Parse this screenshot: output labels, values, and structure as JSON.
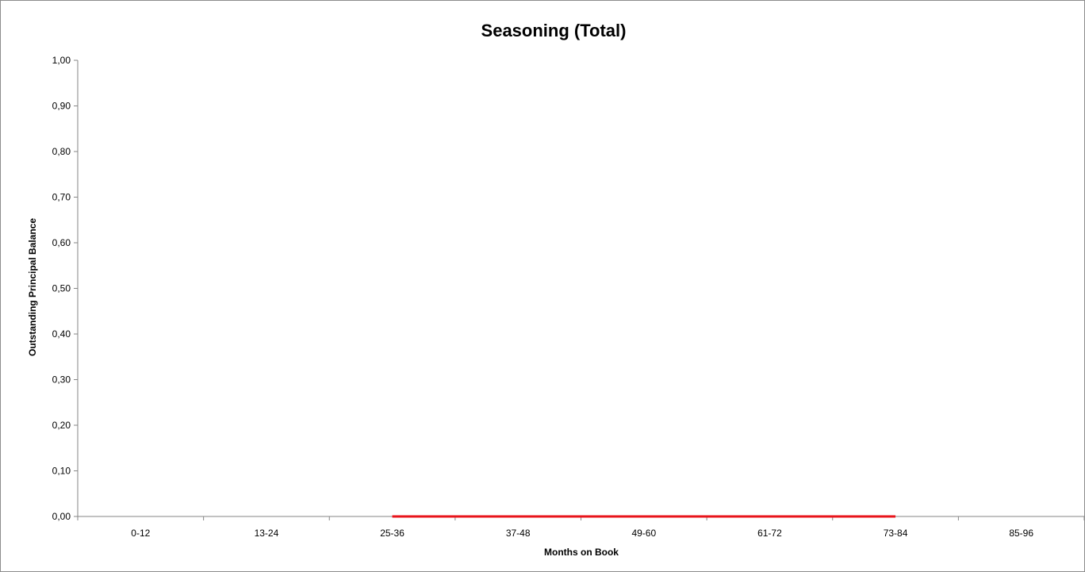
{
  "chart_data": {
    "type": "line",
    "title": "Seasoning (Total)",
    "xlabel": "Months on Book",
    "ylabel": "Outstanding Principal Balance",
    "categories": [
      "0-12",
      "13-24",
      "25-36",
      "37-48",
      "49-60",
      "61-72",
      "73-84",
      "85-96"
    ],
    "series": [
      {
        "color": "#e8141b",
        "values": [
          null,
          null,
          0,
          0,
          0,
          0,
          0,
          null
        ]
      }
    ],
    "ylim": [
      0,
      1
    ],
    "yticks": [
      "0,00",
      "0,10",
      "0,20",
      "0,30",
      "0,40",
      "0,50",
      "0,60",
      "0,70",
      "0,80",
      "0,90",
      "1,00"
    ],
    "grid": false,
    "legend": "none"
  }
}
